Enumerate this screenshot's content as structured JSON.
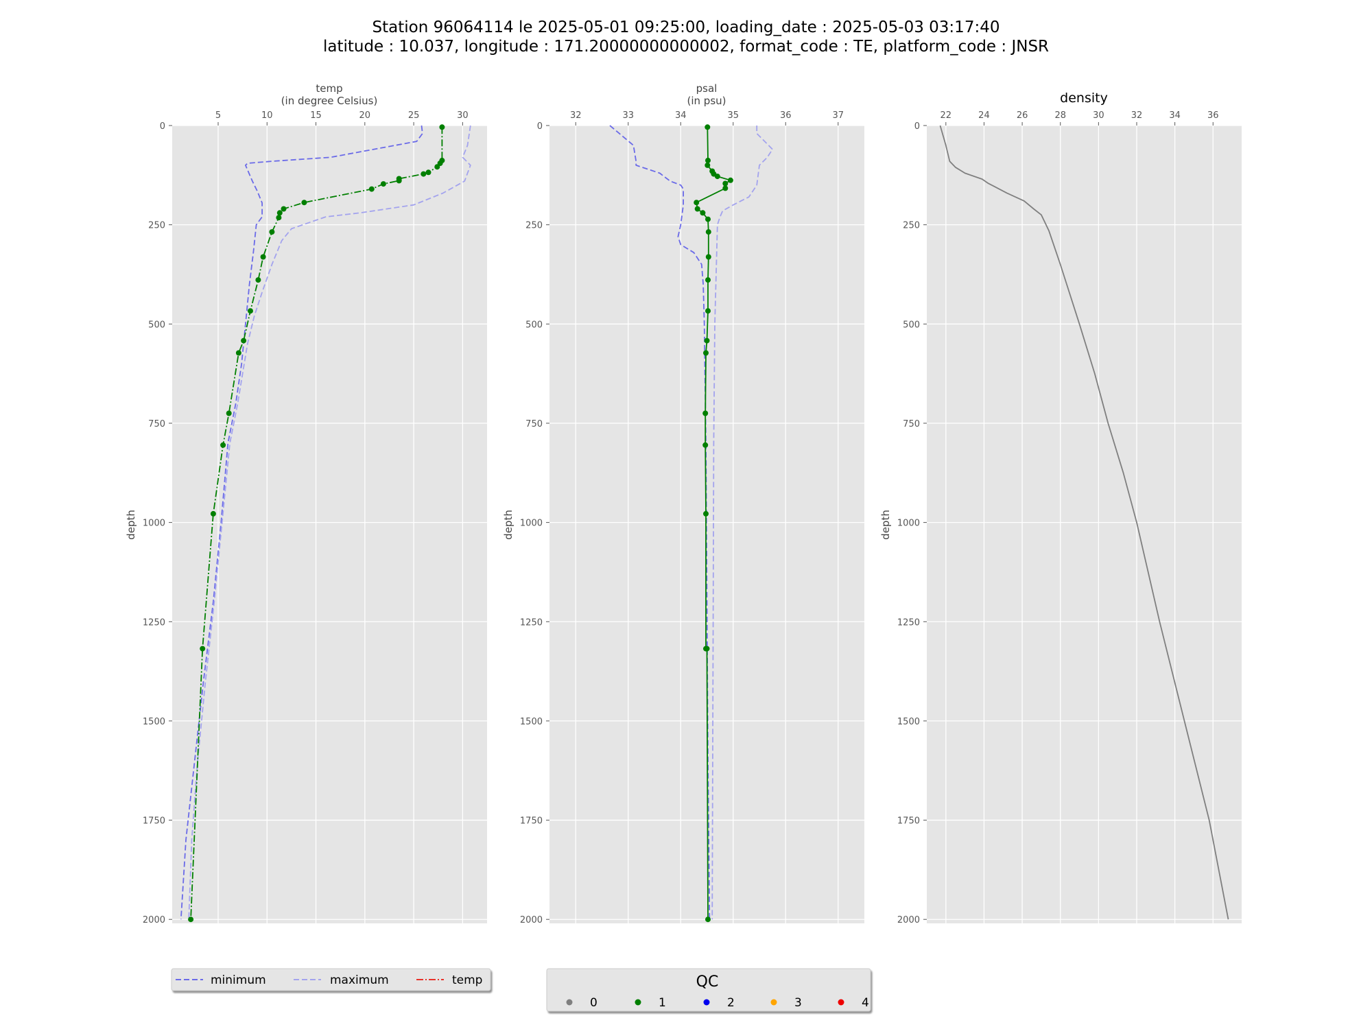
{
  "title": {
    "line1": "Station 96064114 le 2025-05-01 09:25:00, loading_date : 2025-05-03 03:17:40",
    "line2": "latitude : 10.037, longitude : 171.20000000000002, format_code : TE, platform_code : JNSR"
  },
  "colors": {
    "panel_bg": "#e5e5e5",
    "grid": "#ffffff",
    "minimum": "#6a6ae8",
    "maximum": "#a3a3ee",
    "profile": "#007f00",
    "density": "#7f7f7f",
    "legend_temp": "#e8312a"
  },
  "chart_data": [
    {
      "type": "line",
      "title": "temp\n(in degree Celsius)",
      "title_lines": [
        "temp",
        "(in degree Celsius)"
      ],
      "xlabel": "temp (in degree Celsius)",
      "ylabel": "depth",
      "x_axis_position": "top",
      "y_inverted": true,
      "xlim": [
        0.3,
        32.5
      ],
      "ylim": [
        2010,
        0
      ],
      "xticks": [
        5,
        10,
        15,
        20,
        25,
        30
      ],
      "yticks": [
        0,
        250,
        500,
        750,
        1000,
        1250,
        1500,
        1750,
        2000
      ],
      "grid": true,
      "series": [
        {
          "name": "minimum",
          "style": "dashed",
          "x": [
            25.8,
            25.9,
            25.3,
            16.5,
            10.5,
            8.0,
            7.8,
            8.5,
            9.0,
            9.5,
            9.5,
            8.9,
            8.6,
            8.2,
            7.8,
            7.4,
            6.8,
            6.0,
            5.3,
            4.5,
            3.5,
            2.6,
            1.7,
            1.2
          ],
          "y": [
            0,
            20,
            40,
            80,
            90,
            95,
            100,
            140,
            165,
            195,
            230,
            250,
            320,
            400,
            500,
            600,
            700,
            800,
            1000,
            1200,
            1400,
            1600,
            1800,
            2000
          ]
        },
        {
          "name": "maximum",
          "style": "dashed",
          "x": [
            30.8,
            30.5,
            30.0,
            30.8,
            30.2,
            28.0,
            25.0,
            19.5,
            16.0,
            12.5,
            11.5,
            10.5,
            9.5,
            8.7,
            8.0,
            7.0,
            6.2,
            5.4,
            4.6,
            3.7,
            2.9,
            2.3,
            2.0
          ],
          "y": [
            0,
            50,
            80,
            100,
            140,
            170,
            200,
            220,
            230,
            260,
            290,
            350,
            420,
            480,
            550,
            700,
            800,
            1000,
            1200,
            1400,
            1600,
            1800,
            2000
          ]
        },
        {
          "name": "temp",
          "style": "dashdot",
          "markers": true,
          "qc": 1,
          "x": [
            27.9,
            27.9,
            27.7,
            27.4,
            26.5,
            26.0,
            23.5,
            23.5,
            21.9,
            20.7,
            13.8,
            11.7,
            11.3,
            11.2,
            10.5,
            9.6,
            9.1,
            8.3,
            7.6,
            7.1,
            6.1,
            5.5,
            4.5,
            3.4,
            2.2
          ],
          "y": [
            4,
            88,
            95,
            104,
            118,
            122,
            134,
            139,
            147,
            160,
            194,
            210,
            220,
            232,
            268,
            331,
            389,
            467,
            542,
            573,
            725,
            805,
            978,
            1318,
            2000
          ]
        }
      ]
    },
    {
      "type": "line",
      "title": "psal\n(in psu)",
      "title_lines": [
        "psal",
        "(in psu)"
      ],
      "xlabel": "psal (in psu)",
      "ylabel": "depth",
      "x_axis_position": "top",
      "y_inverted": true,
      "xlim": [
        31.5,
        37.5
      ],
      "ylim": [
        2010,
        0
      ],
      "xticks": [
        32,
        33,
        34,
        35,
        36,
        37
      ],
      "yticks": [
        0,
        250,
        500,
        750,
        1000,
        1250,
        1500,
        1750,
        2000
      ],
      "grid": true,
      "series": [
        {
          "name": "minimum",
          "style": "dashed",
          "x": [
            32.65,
            33.1,
            33.15,
            33.15,
            33.6,
            33.8,
            34.0,
            34.05,
            34.05,
            34.0,
            33.95,
            34.0,
            34.25,
            34.4,
            34.43,
            34.45,
            34.48,
            34.5,
            34.52,
            34.55
          ],
          "y": [
            0,
            50,
            90,
            100,
            120,
            140,
            150,
            160,
            200,
            250,
            280,
            300,
            320,
            350,
            400,
            500,
            800,
            1200,
            1600,
            2000
          ]
        },
        {
          "name": "maximum",
          "style": "dashed",
          "x": [
            35.45,
            35.45,
            35.6,
            35.75,
            35.65,
            35.5,
            35.45,
            35.3,
            35.0,
            34.8,
            34.75,
            34.7,
            34.68,
            34.65,
            34.63,
            34.62,
            34.61,
            34.6
          ],
          "y": [
            0,
            20,
            40,
            60,
            80,
            100,
            150,
            180,
            200,
            215,
            230,
            250,
            350,
            500,
            800,
            1200,
            1600,
            2000
          ]
        },
        {
          "name": "psal",
          "style": "solid",
          "markers": true,
          "qc": 1,
          "x": [
            34.51,
            34.52,
            34.51,
            34.6,
            34.63,
            34.7,
            34.95,
            34.85,
            34.85,
            34.3,
            34.32,
            34.42,
            34.52,
            34.53,
            34.53,
            34.52,
            34.52,
            34.5,
            34.48,
            34.47,
            34.47,
            34.48,
            34.48,
            34.5,
            34.52
          ],
          "y": [
            4,
            88,
            100,
            115,
            122,
            128,
            138,
            146,
            158,
            194,
            210,
            220,
            236,
            268,
            331,
            389,
            467,
            542,
            573,
            725,
            805,
            978,
            1318,
            1318,
            2000
          ]
        }
      ]
    },
    {
      "type": "line",
      "title": "density",
      "xlabel": "density",
      "ylabel": "depth",
      "x_axis_position": "top",
      "y_inverted": true,
      "xlim": [
        21.0,
        37.5
      ],
      "ylim": [
        2010,
        0
      ],
      "xticks": [
        22,
        24,
        26,
        28,
        30,
        32,
        34,
        36
      ],
      "yticks": [
        0,
        250,
        500,
        750,
        1000,
        1250,
        1500,
        1750,
        2000
      ],
      "grid": true,
      "series": [
        {
          "name": "density",
          "style": "solid",
          "x": [
            21.7,
            22.0,
            22.2,
            22.5,
            23.0,
            23.9,
            24.2,
            24.6,
            25.2,
            26.1,
            26.6,
            27.0,
            27.4,
            28.0,
            29.0,
            29.8,
            30.5,
            31.3,
            32.0,
            33.2,
            34.5,
            35.8,
            36.8
          ],
          "y": [
            0,
            50,
            90,
            105,
            120,
            135,
            145,
            155,
            170,
            190,
            210,
            225,
            265,
            350,
            500,
            625,
            750,
            875,
            1000,
            1250,
            1500,
            1750,
            2000
          ]
        }
      ]
    }
  ],
  "legend_profiles": {
    "items": [
      {
        "label": "minimum",
        "style": "dashed"
      },
      {
        "label": "maximum",
        "style": "dashed"
      },
      {
        "label": "temp",
        "style": "dashdot"
      }
    ]
  },
  "legend_qc": {
    "title": "QC",
    "items": [
      {
        "label": "0",
        "color": "#7f7f7f"
      },
      {
        "label": "1",
        "color": "#007f00"
      },
      {
        "label": "2",
        "color": "#0000ee"
      },
      {
        "label": "3",
        "color": "#ffa500"
      },
      {
        "label": "4",
        "color": "#ee0000"
      }
    ]
  }
}
